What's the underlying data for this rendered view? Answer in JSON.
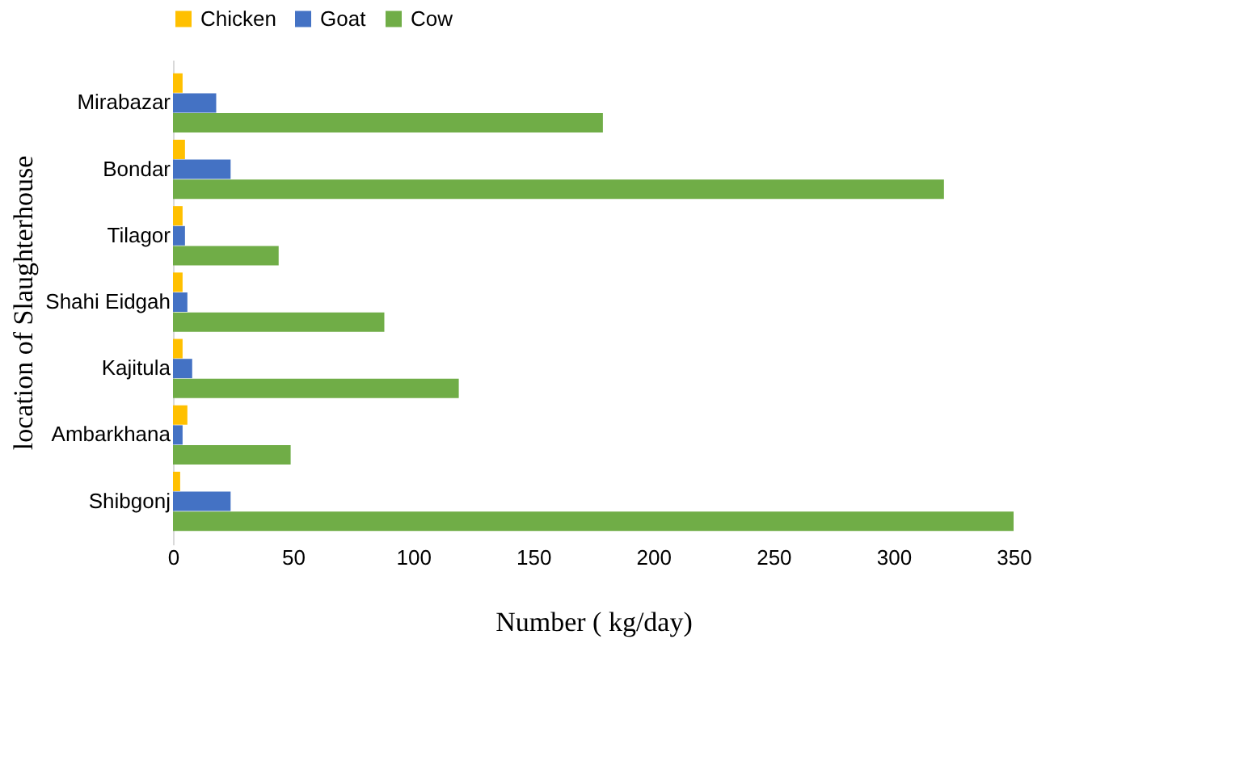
{
  "chart_data": {
    "type": "bar",
    "orientation": "horizontal",
    "xlabel": "Number ( kg/day)",
    "ylabel": "location of Slaughterhouse",
    "categories": [
      "Mirabazar",
      "Bondar",
      "Tilagor",
      "Shahi Eidgah",
      "Kajitula",
      "Ambarkhana",
      "Shibgonj"
    ],
    "series": [
      {
        "name": "Chicken",
        "color": "#ffc000",
        "values": [
          4,
          5,
          4,
          4,
          4,
          6,
          3
        ]
      },
      {
        "name": "Goat",
        "color": "#4472c4",
        "values": [
          18,
          24,
          5,
          6,
          8,
          4,
          24
        ]
      },
      {
        "name": "Cow",
        "color": "#70ad47",
        "values": [
          179,
          321,
          44,
          88,
          119,
          49,
          350
        ]
      }
    ],
    "xlim": [
      0,
      350
    ],
    "xticks": [
      0,
      50,
      100,
      150,
      200,
      250,
      300,
      350
    ],
    "grid": false,
    "legend": "top"
  }
}
